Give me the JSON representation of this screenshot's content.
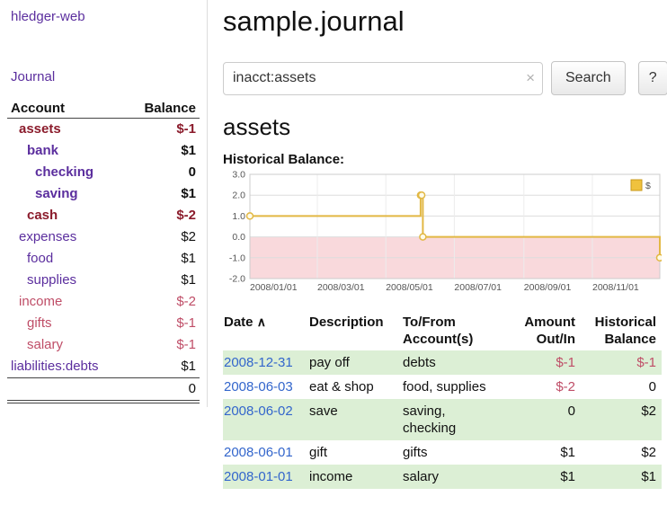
{
  "app": {
    "title": "hledger-web"
  },
  "sidebar": {
    "journal_link": "Journal",
    "accounts": {
      "headers": {
        "account": "Account",
        "balance": "Balance"
      },
      "rows": [
        {
          "name": "assets",
          "balance": "$-1",
          "indent": 1,
          "bold": true,
          "negative": true
        },
        {
          "name": "bank",
          "balance": "$1",
          "indent": 2,
          "bold": true,
          "negative": false
        },
        {
          "name": "checking",
          "balance": "0",
          "indent": 3,
          "bold": true,
          "negative": false
        },
        {
          "name": "saving",
          "balance": "$1",
          "indent": 3,
          "bold": true,
          "negative": false
        },
        {
          "name": "cash",
          "balance": "$-2",
          "indent": 2,
          "bold": true,
          "negative": true
        },
        {
          "name": "expenses",
          "balance": "$2",
          "indent": 1,
          "bold": false,
          "negative": false
        },
        {
          "name": "food",
          "balance": "$1",
          "indent": 2,
          "bold": false,
          "negative": false
        },
        {
          "name": "supplies",
          "balance": "$1",
          "indent": 2,
          "bold": false,
          "negative": false
        },
        {
          "name": "income",
          "balance": "$-2",
          "indent": 1,
          "bold": false,
          "negative": true
        },
        {
          "name": "gifts",
          "balance": "$-1",
          "indent": 2,
          "bold": false,
          "negative": true
        },
        {
          "name": "salary",
          "balance": "$-1",
          "indent": 2,
          "bold": false,
          "negative": true
        },
        {
          "name": "liabilities:debts",
          "balance": "$1",
          "indent": 0,
          "bold": false,
          "negative": false
        }
      ],
      "total": "0"
    }
  },
  "main": {
    "title": "sample.journal",
    "search": {
      "value": "inacct:assets",
      "clear_label": "×",
      "button_label": "Search",
      "help_label": "?"
    },
    "account_heading": "assets",
    "chart_label": "Historical Balance:"
  },
  "chart_data": {
    "type": "line",
    "step": true,
    "title": "Historical Balance",
    "series": [
      {
        "name": "$",
        "x_days": [
          0,
          152,
          153,
          154,
          365
        ],
        "values": [
          1,
          2,
          2,
          0,
          -1
        ]
      }
    ],
    "x_dates": [
      "2008-01-01",
      "2008-06-01",
      "2008-06-02",
      "2008-06-03",
      "2008-12-31"
    ],
    "xlim": [
      0,
      365
    ],
    "ylim": [
      -2,
      3
    ],
    "yticks": [
      3,
      2,
      1,
      0,
      -1,
      -2
    ],
    "ytick_labels": [
      "3.0",
      "2.0",
      "1.0",
      "0.0",
      "-1.0",
      "-2.0"
    ],
    "xticks": [
      0,
      60,
      121,
      182,
      244,
      305
    ],
    "xtick_labels": [
      "2008/01/01",
      "2008/03/01",
      "2008/05/01",
      "2008/07/01",
      "2008/09/01",
      "2008/11/01"
    ],
    "legend": "$",
    "legend_position": "top-right",
    "grid": true,
    "colors": {
      "line": "#e2b844",
      "negative_region": "#f9d9dc",
      "legend_fill": "#f0c23d",
      "legend_border": "#c9991c"
    }
  },
  "register": {
    "headers": {
      "date": "Date",
      "sort_icon": "∧",
      "description": "Description",
      "to_from": "To/From Account(s)",
      "amount": "Amount Out/In",
      "balance": "Historical Balance"
    },
    "rows": [
      {
        "date": "2008-12-31",
        "description": "pay off",
        "to_from": [
          "debts"
        ],
        "amount": "$-1",
        "balance": "$-1"
      },
      {
        "date": "2008-06-03",
        "description": "eat & shop",
        "to_from": [
          "food, supplies"
        ],
        "amount": "$-2",
        "balance": "0"
      },
      {
        "date": "2008-06-02",
        "description": "save",
        "to_from": [
          "saving,",
          "checking"
        ],
        "amount": "0",
        "balance": "$2"
      },
      {
        "date": "2008-06-01",
        "description": "gift",
        "to_from": [
          "gifts"
        ],
        "amount": "$1",
        "balance": "$2"
      },
      {
        "date": "2008-01-01",
        "description": "income",
        "to_from": [
          "salary"
        ],
        "amount": "$1",
        "balance": "$1"
      }
    ]
  }
}
